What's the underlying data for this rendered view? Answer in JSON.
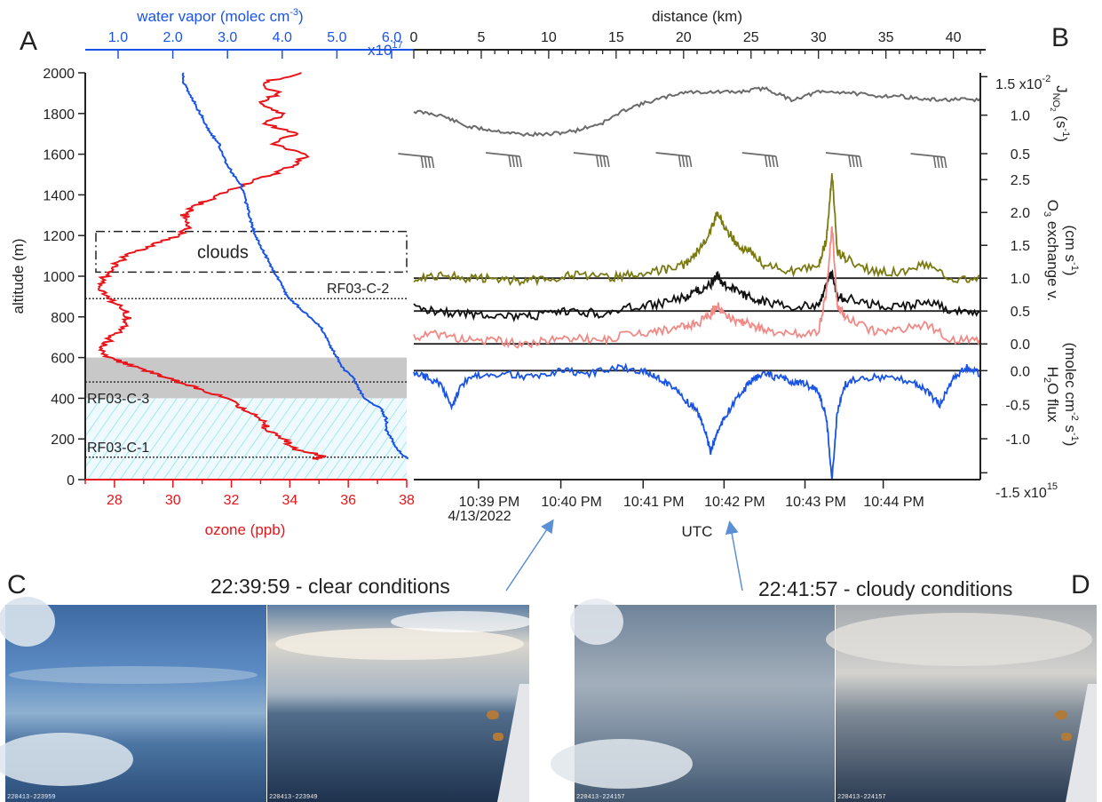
{
  "panels": {
    "A": "A",
    "B": "B",
    "C": "C",
    "D": "D"
  },
  "colors": {
    "ozone": "#e8141a",
    "water_vapor": "#1a54e6",
    "jno2": "#6a6a6a",
    "o3_olive": "#7a7a12",
    "o3_black": "#111111",
    "o3_pink": "#f08a86",
    "h2o_flux": "#1a54e6",
    "arrow": "#5b8fd6"
  },
  "panel_a": {
    "left_axis_label": "altitude (m)",
    "top_axis_label": "water vapor (molec cm",
    "top_axis_exp": "-3",
    "top_axis_label_end": ")",
    "top_multiplier": "x10",
    "top_multiplier_exp": "17",
    "bottom_axis_label": "ozone (ppb)",
    "clouds_label": "clouds",
    "level_labels": [
      "RF03-C-2",
      "RF03-C-3",
      "RF03-C-1"
    ]
  },
  "panel_b": {
    "top_axis_label": "distance (km)",
    "jno2_multiplier": "1.5 x10",
    "jno2_multiplier_exp": "-2",
    "h2o_multiplier": "-1.5 x10",
    "h2o_multiplier_exp": "15",
    "bottom_axis_label": "UTC",
    "date_label": "4/13/2022"
  },
  "captions": {
    "clear": "22:39:59 - clear conditions",
    "cloudy": "22:41:57 - cloudy conditions"
  },
  "photos": {
    "stamps": [
      "220413-223959",
      "220413-223949",
      "220413-224157",
      "220413-224157"
    ]
  },
  "chart_data": [
    {
      "type": "line",
      "panel": "A",
      "ylabel": "altitude (m)",
      "ylim": [
        0,
        2000
      ],
      "y_ticks": [
        0,
        200,
        400,
        600,
        800,
        1000,
        1200,
        1400,
        1600,
        1800,
        2000
      ],
      "xlabel_bottom": "ozone (ppb)",
      "xlim_bottom": [
        27,
        38
      ],
      "x_ticks_bottom": [
        28,
        30,
        32,
        34,
        36,
        38
      ],
      "xlabel_top": "water vapor (molec cm-3)",
      "x_ticks_top": [
        "1.0",
        "2.0",
        "3.0",
        "4.0",
        "5.0",
        "6.0"
      ],
      "x_ticks_top_values": [
        1.0,
        2.0,
        3.0,
        4.0,
        5.0,
        6.0
      ],
      "top_multiplier": "x10^17",
      "series": [
        {
          "name": "ozone",
          "axis": "bottom",
          "points": [
            [
              34.8,
              100
            ],
            [
              35.2,
              115
            ],
            [
              34.2,
              150
            ],
            [
              33.8,
              200
            ],
            [
              33.2,
              250
            ],
            [
              33.0,
              300
            ],
            [
              32.4,
              350
            ],
            [
              31.8,
              400
            ],
            [
              31.0,
              440
            ],
            [
              30.2,
              480
            ],
            [
              29.4,
              520
            ],
            [
              28.6,
              560
            ],
            [
              27.8,
              600
            ],
            [
              27.6,
              650
            ],
            [
              27.9,
              700
            ],
            [
              28.3,
              750
            ],
            [
              28.5,
              800
            ],
            [
              28.2,
              850
            ],
            [
              27.7,
              900
            ],
            [
              27.4,
              950
            ],
            [
              27.7,
              1000
            ],
            [
              28.0,
              1050
            ],
            [
              28.4,
              1100
            ],
            [
              29.2,
              1150
            ],
            [
              30.2,
              1200
            ],
            [
              30.6,
              1250
            ],
            [
              30.4,
              1300
            ],
            [
              30.8,
              1350
            ],
            [
              31.6,
              1400
            ],
            [
              32.4,
              1450
            ],
            [
              33.4,
              1500
            ],
            [
              34.2,
              1550
            ],
            [
              34.6,
              1600
            ],
            [
              33.4,
              1650
            ],
            [
              34.2,
              1700
            ],
            [
              33.2,
              1750
            ],
            [
              33.8,
              1800
            ],
            [
              33.0,
              1850
            ],
            [
              33.6,
              1900
            ],
            [
              33.0,
              1950
            ],
            [
              34.4,
              2000
            ]
          ]
        },
        {
          "name": "water vapor",
          "axis": "top",
          "points": [
            [
              6.3,
              100
            ],
            [
              6.1,
              150
            ],
            [
              6.0,
              200
            ],
            [
              5.9,
              250
            ],
            [
              5.9,
              300
            ],
            [
              5.8,
              350
            ],
            [
              5.5,
              400
            ],
            [
              5.4,
              450
            ],
            [
              5.3,
              500
            ],
            [
              5.1,
              550
            ],
            [
              5.0,
              600
            ],
            [
              4.9,
              650
            ],
            [
              4.8,
              700
            ],
            [
              4.7,
              750
            ],
            [
              4.5,
              800
            ],
            [
              4.3,
              850
            ],
            [
              4.1,
              900
            ],
            [
              4.0,
              950
            ],
            [
              3.9,
              1000
            ],
            [
              3.8,
              1050
            ],
            [
              3.7,
              1100
            ],
            [
              3.6,
              1150
            ],
            [
              3.5,
              1200
            ],
            [
              3.45,
              1250
            ],
            [
              3.4,
              1300
            ],
            [
              3.35,
              1350
            ],
            [
              3.3,
              1400
            ],
            [
              3.25,
              1450
            ],
            [
              3.1,
              1500
            ],
            [
              3.0,
              1550
            ],
            [
              2.9,
              1600
            ],
            [
              2.85,
              1650
            ],
            [
              2.7,
              1700
            ],
            [
              2.6,
              1750
            ],
            [
              2.5,
              1800
            ],
            [
              2.4,
              1850
            ],
            [
              2.3,
              1900
            ],
            [
              2.2,
              1950
            ],
            [
              2.2,
              2000
            ]
          ]
        }
      ],
      "annotations": {
        "clouds_box_altitude_range": [
          1020,
          1220
        ],
        "shaded_gray_altitude_range": [
          400,
          600
        ],
        "hatched_altitude_range": [
          0,
          400
        ],
        "dotted_levels": [
          {
            "label": "RF03-C-2",
            "altitude": 890
          },
          {
            "label": "RF03-C-3",
            "altitude": 480
          },
          {
            "label": "RF03-C-1",
            "altitude": 110
          }
        ]
      }
    },
    {
      "type": "line",
      "panel": "B",
      "xlabel_top": "distance (km)",
      "xlim_top": [
        0,
        42
      ],
      "x_ticks_top": [
        0,
        5,
        10,
        15,
        20,
        25,
        30,
        35,
        40
      ],
      "xlabel_bottom": "UTC",
      "x_ticks_bottom": [
        "10:39 PM",
        "10:40 PM",
        "10:41 PM",
        "10:42 PM",
        "10:43 PM",
        "10:44 PM"
      ],
      "x_ticks_bottom_km": [
        4.8,
        10.9,
        17.0,
        23.0,
        29.0,
        34.8
      ],
      "subplots": [
        {
          "name": "JNO2",
          "ylabel": "JNO2 (s-1)",
          "ylim": [
            0.5,
            1.55
          ],
          "y_ticks": [
            "1.5 x10-2",
            "1.0",
            "0.5"
          ],
          "y_ticks_values": [
            1.5,
            1.0,
            0.5
          ],
          "series": [
            {
              "x": [
                0,
                2,
                4,
                6,
                8,
                10,
                12,
                14,
                16,
                18,
                20,
                22,
                24,
                26,
                28,
                30,
                32,
                34,
                36,
                38,
                40,
                42
              ],
              "values": [
                1.05,
                1.0,
                0.85,
                0.8,
                0.75,
                0.75,
                0.8,
                0.9,
                1.1,
                1.2,
                1.3,
                1.3,
                1.3,
                1.35,
                1.2,
                1.3,
                1.3,
                1.25,
                1.25,
                1.2,
                1.2,
                1.2
              ]
            }
          ]
        },
        {
          "name": "O3 exchange velocity",
          "ylabel": "O3 exchange v. (cm s-1)",
          "ylim": [
            -0.2,
            2.8
          ],
          "y_ticks": [
            "2.5",
            "2.0",
            "1.5",
            "1.0",
            "0.5",
            "0.0"
          ],
          "y_ticks_values": [
            2.5,
            2.0,
            1.5,
            1.0,
            0.5,
            0.0
          ],
          "series": [
            {
              "x": [
                0,
                2,
                4,
                6,
                8,
                10,
                12,
                14,
                16,
                18,
                20,
                21,
                22,
                22.5,
                23,
                24,
                25,
                26,
                28,
                30,
                30.6,
                31,
                31.4,
                32,
                34,
                36,
                38,
                40,
                42
              ],
              "values": [
                1.0,
                1.05,
                1.0,
                1.0,
                0.95,
                1.0,
                1.05,
                1.0,
                1.05,
                1.1,
                1.2,
                1.4,
                1.7,
                2.0,
                1.8,
                1.5,
                1.4,
                1.2,
                1.1,
                1.2,
                1.6,
                2.6,
                1.4,
                1.3,
                1.1,
                1.1,
                1.2,
                1.0,
                1.0
              ]
            },
            {
              "x": [
                0,
                2,
                4,
                6,
                8,
                10,
                12,
                14,
                16,
                18,
                20,
                21,
                22,
                22.5,
                23,
                24,
                25,
                26,
                28,
                30,
                30.6,
                31,
                31.4,
                32,
                34,
                36,
                38,
                40,
                42
              ],
              "values": [
                0.55,
                0.5,
                0.45,
                0.45,
                0.4,
                0.45,
                0.5,
                0.45,
                0.55,
                0.6,
                0.7,
                0.8,
                0.9,
                1.05,
                0.9,
                0.8,
                0.7,
                0.65,
                0.55,
                0.6,
                0.9,
                1.1,
                0.7,
                0.7,
                0.6,
                0.55,
                0.65,
                0.5,
                0.5
              ]
            },
            {
              "x": [
                0,
                2,
                4,
                6,
                8,
                10,
                12,
                14,
                16,
                18,
                20,
                21,
                22,
                22.5,
                23,
                24,
                25,
                26,
                28,
                30,
                30.6,
                31,
                31.4,
                32,
                34,
                36,
                38,
                40,
                42
              ],
              "values": [
                0.1,
                0.15,
                0.05,
                0.05,
                0.0,
                0.05,
                0.1,
                0.05,
                0.15,
                0.2,
                0.25,
                0.3,
                0.45,
                0.6,
                0.45,
                0.35,
                0.3,
                0.2,
                0.15,
                0.2,
                0.8,
                1.8,
                0.6,
                0.4,
                0.2,
                0.2,
                0.3,
                0.05,
                0.05
              ]
            }
          ]
        },
        {
          "name": "H2O flux",
          "ylabel": "H2O flux (molec cm-2 s-1)",
          "ylim": [
            -1.6,
            0.2
          ],
          "y_ticks": [
            "0.0",
            "-0.5",
            "-1.0",
            "-1.5 x10^15"
          ],
          "y_ticks_values": [
            0.0,
            -0.5,
            -1.0,
            -1.5
          ],
          "series": [
            {
              "x": [
                0,
                1,
                2,
                2.8,
                3.5,
                5,
                7,
                9,
                11,
                13,
                15,
                17,
                18,
                19,
                20,
                21,
                21.5,
                22,
                22.5,
                23,
                24,
                25,
                26,
                27,
                28,
                29,
                30,
                30.6,
                31,
                31.4,
                32,
                33,
                35,
                37,
                38,
                39,
                40,
                41,
                42
              ],
              "values": [
                -0.05,
                -0.1,
                -0.2,
                -0.55,
                -0.2,
                -0.05,
                -0.05,
                -0.1,
                0.0,
                -0.05,
                0.05,
                0.0,
                -0.1,
                -0.2,
                -0.4,
                -0.6,
                -0.8,
                -1.2,
                -0.9,
                -0.7,
                -0.4,
                -0.15,
                -0.05,
                -0.1,
                -0.15,
                -0.2,
                -0.3,
                -0.7,
                -1.6,
                -0.6,
                -0.2,
                -0.1,
                -0.1,
                -0.15,
                -0.3,
                -0.5,
                -0.1,
                0.05,
                -0.05
              ]
            }
          ]
        }
      ]
    }
  ]
}
